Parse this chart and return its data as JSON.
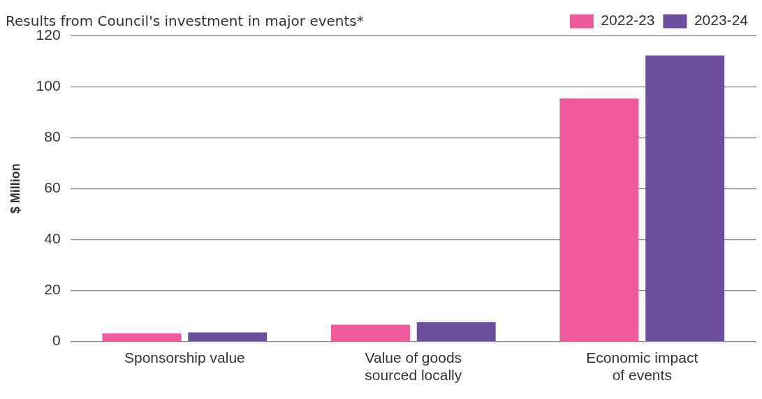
{
  "chart_data": {
    "type": "bar",
    "title": "Results from Council's investment in major events*",
    "ylabel": "$ Million",
    "categories": [
      "Sponsorship value",
      "Value of goods sourced locally",
      "Economic impact of events"
    ],
    "series": [
      {
        "name": "2022-23",
        "color": "#f05a9d",
        "values": [
          3.2,
          6.6,
          95.3
        ]
      },
      {
        "name": "2023-24",
        "color": "#6c4f9c",
        "values": [
          3.6,
          7.6,
          112.2
        ]
      }
    ],
    "ylim": [
      0,
      120
    ],
    "yticks": [
      0,
      20,
      40,
      60,
      80,
      100,
      120
    ],
    "grid": "y",
    "legend": "top right"
  }
}
